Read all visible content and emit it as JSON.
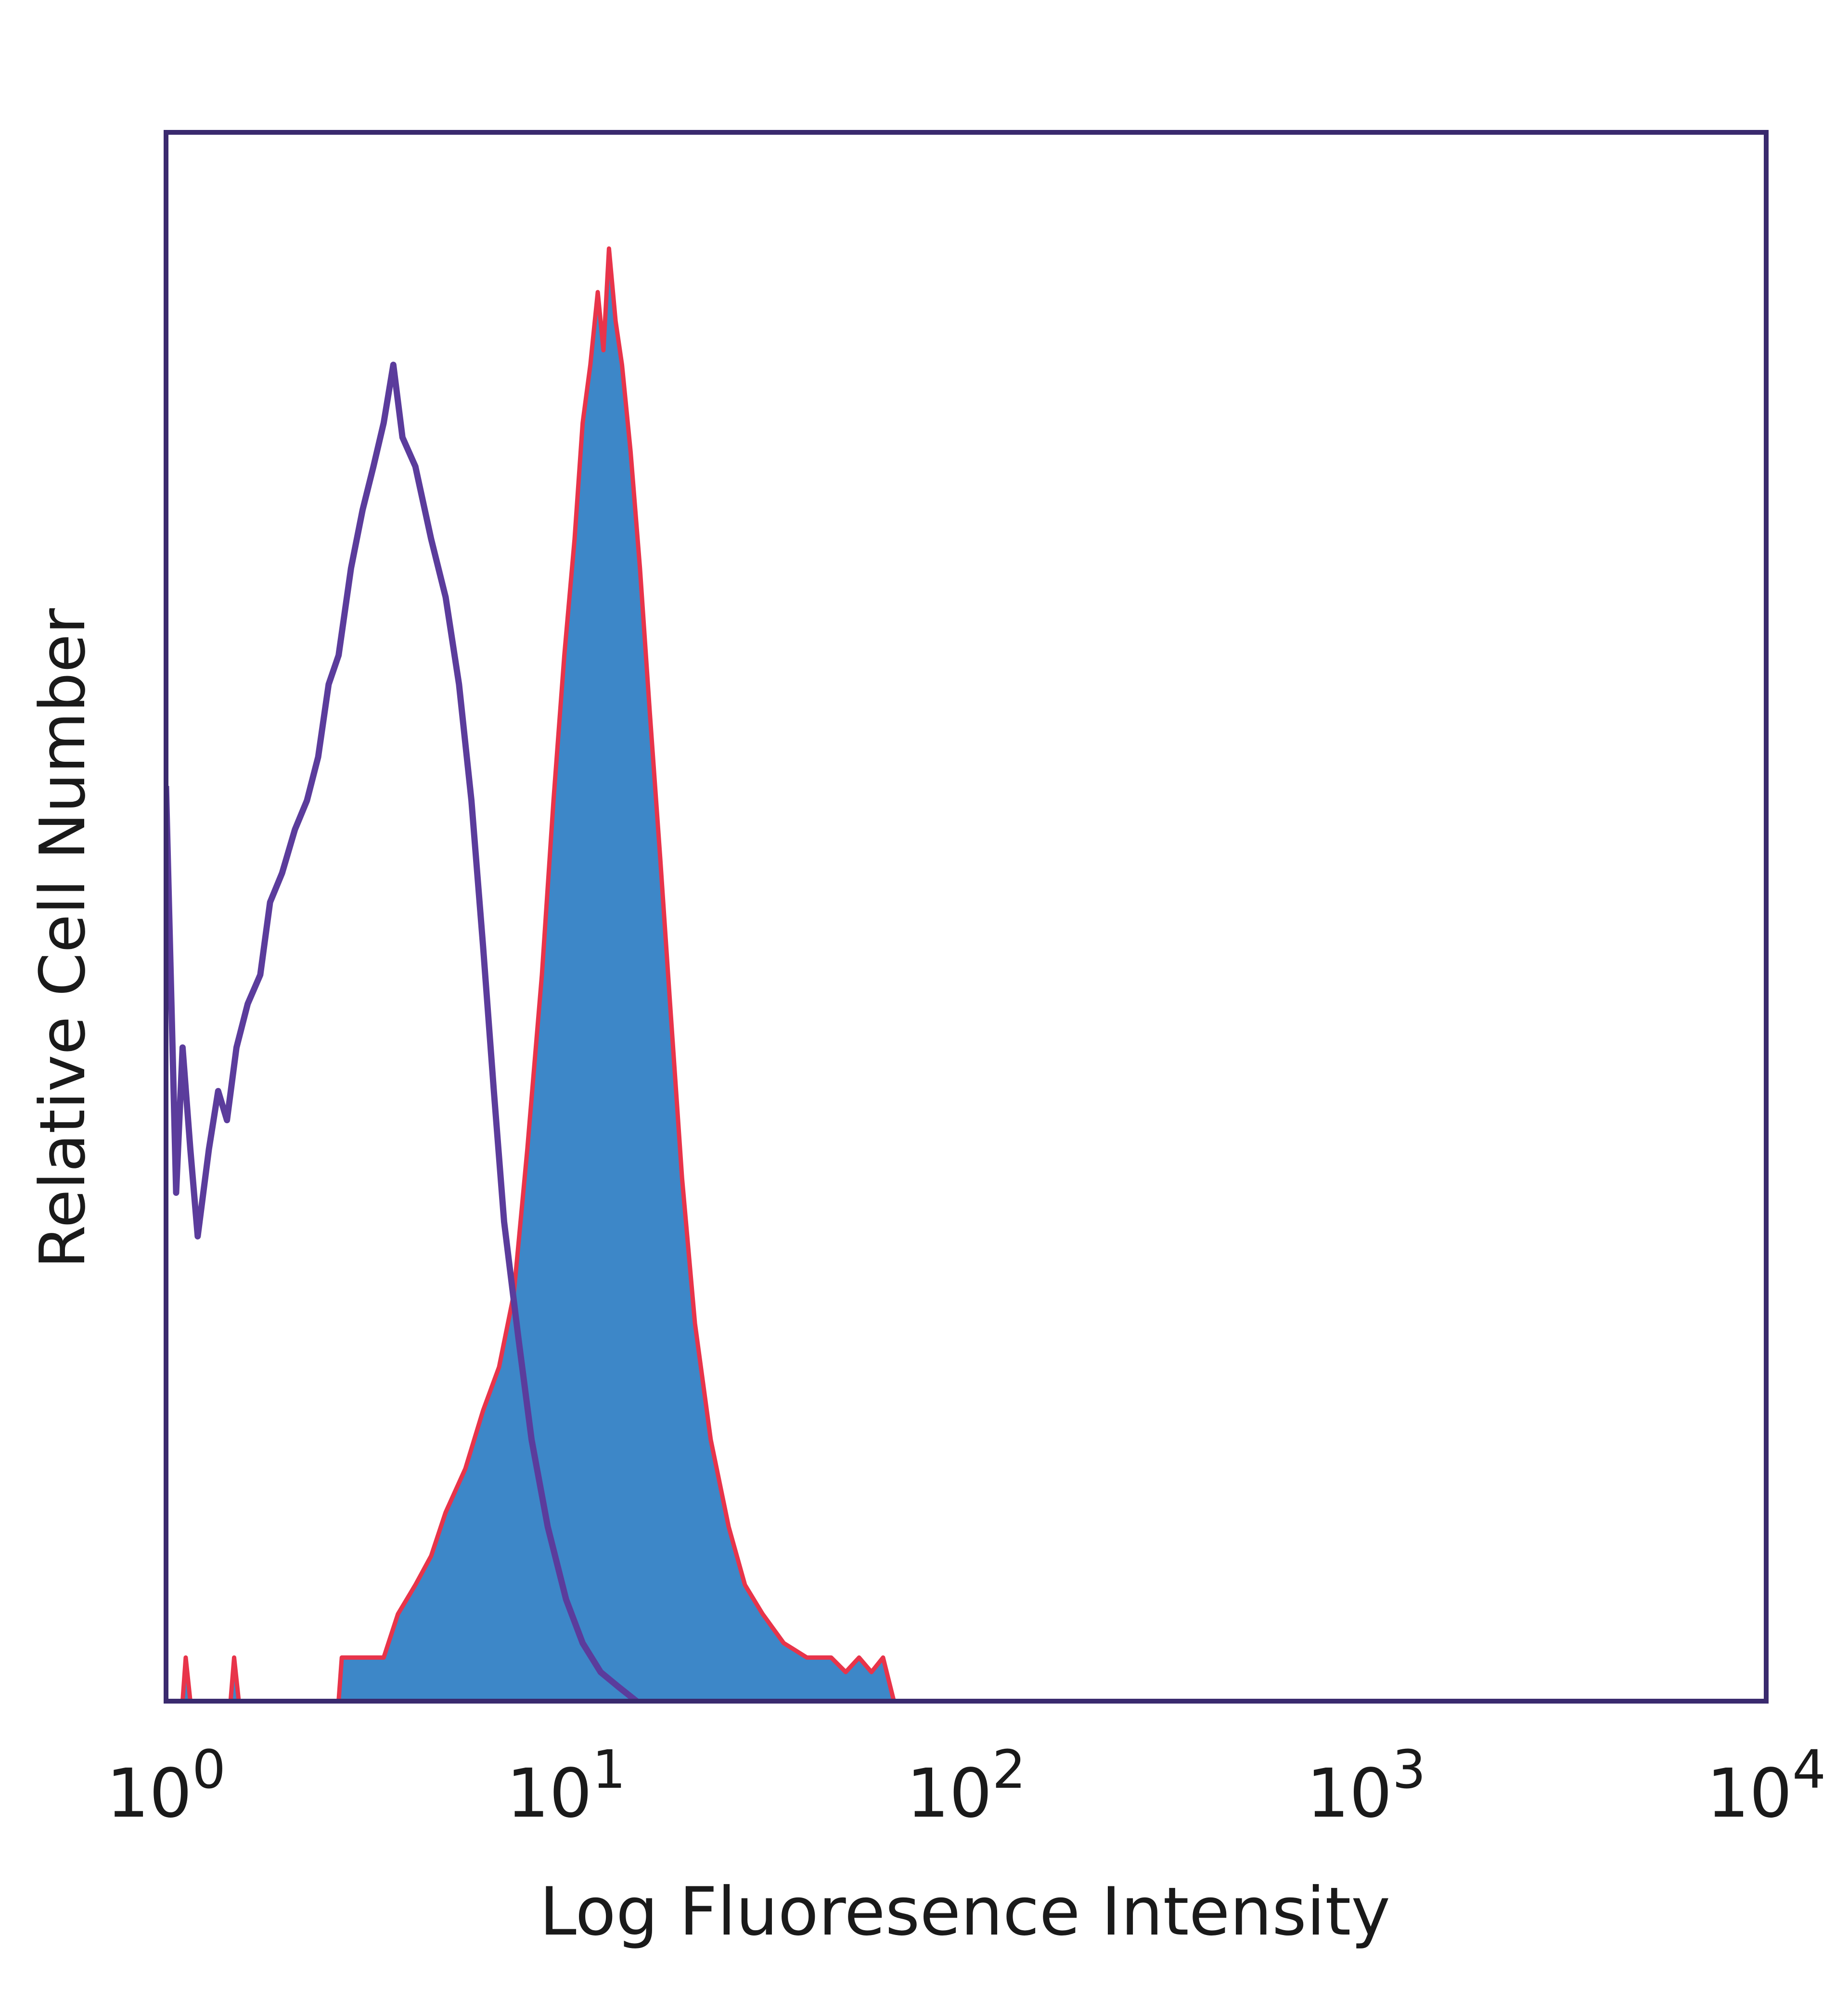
{
  "chart_data": {
    "type": "area",
    "xlabel": "Log Fluoresence Intensity",
    "ylabel": "Relative Cell Number",
    "x_scale": "log",
    "xlim": [
      1,
      10000
    ],
    "ylim": [
      0,
      1.08
    ],
    "grid": false,
    "x_ticks": [
      {
        "value": 1,
        "base": "10",
        "exp": "0"
      },
      {
        "value": 10,
        "base": "10",
        "exp": "1"
      },
      {
        "value": 100,
        "base": "10",
        "exp": "2"
      },
      {
        "value": 1000,
        "base": "10",
        "exp": "3"
      },
      {
        "value": 10000,
        "base": "10",
        "exp": "4"
      }
    ],
    "series": [
      {
        "style": "filled",
        "color": "#3d87c8",
        "edge_color": "#e8344a",
        "points": [
          [
            1.0,
            0.0
          ],
          [
            1.1,
            0.0
          ],
          [
            1.12,
            0.03
          ],
          [
            1.15,
            0.0
          ],
          [
            1.45,
            0.0
          ],
          [
            1.48,
            0.03
          ],
          [
            1.52,
            0.0
          ],
          [
            2.7,
            0.0
          ],
          [
            2.75,
            0.03
          ],
          [
            3.2,
            0.03
          ],
          [
            3.5,
            0.03
          ],
          [
            3.8,
            0.06
          ],
          [
            4.2,
            0.08
          ],
          [
            4.6,
            0.1
          ],
          [
            5.0,
            0.13
          ],
          [
            5.6,
            0.16
          ],
          [
            6.2,
            0.2
          ],
          [
            6.8,
            0.23
          ],
          [
            7.4,
            0.28
          ],
          [
            8.0,
            0.38
          ],
          [
            8.7,
            0.5
          ],
          [
            9.3,
            0.62
          ],
          [
            9.9,
            0.72
          ],
          [
            10.5,
            0.8
          ],
          [
            11.0,
            0.88
          ],
          [
            11.5,
            0.92
          ],
          [
            12.0,
            0.97
          ],
          [
            12.4,
            0.93
          ],
          [
            12.8,
            1.0
          ],
          [
            13.3,
            0.95
          ],
          [
            13.8,
            0.92
          ],
          [
            14.5,
            0.86
          ],
          [
            15.3,
            0.78
          ],
          [
            16.2,
            0.68
          ],
          [
            17.2,
            0.58
          ],
          [
            18.2,
            0.48
          ],
          [
            19.5,
            0.36
          ],
          [
            21.0,
            0.26
          ],
          [
            23.0,
            0.18
          ],
          [
            25.5,
            0.12
          ],
          [
            28.0,
            0.08
          ],
          [
            31.0,
            0.06
          ],
          [
            35.0,
            0.04
          ],
          [
            40.0,
            0.03
          ],
          [
            46.0,
            0.03
          ],
          [
            50.0,
            0.02
          ],
          [
            54.0,
            0.03
          ],
          [
            58.0,
            0.02
          ],
          [
            62.0,
            0.03
          ],
          [
            66.0,
            0.0
          ]
        ]
      },
      {
        "style": "line",
        "color": "#5b3c9c",
        "points": [
          [
            1.0,
            0.63
          ],
          [
            1.06,
            0.35
          ],
          [
            1.1,
            0.45
          ],
          [
            1.15,
            0.38
          ],
          [
            1.2,
            0.32
          ],
          [
            1.28,
            0.38
          ],
          [
            1.35,
            0.42
          ],
          [
            1.42,
            0.4
          ],
          [
            1.5,
            0.45
          ],
          [
            1.6,
            0.48
          ],
          [
            1.72,
            0.5
          ],
          [
            1.82,
            0.55
          ],
          [
            1.95,
            0.57
          ],
          [
            2.1,
            0.6
          ],
          [
            2.25,
            0.62
          ],
          [
            2.4,
            0.65
          ],
          [
            2.55,
            0.7
          ],
          [
            2.7,
            0.72
          ],
          [
            2.9,
            0.78
          ],
          [
            3.1,
            0.82
          ],
          [
            3.3,
            0.85
          ],
          [
            3.5,
            0.88
          ],
          [
            3.7,
            0.92
          ],
          [
            3.9,
            0.87
          ],
          [
            4.2,
            0.85
          ],
          [
            4.6,
            0.8
          ],
          [
            5.0,
            0.76
          ],
          [
            5.4,
            0.7
          ],
          [
            5.8,
            0.62
          ],
          [
            6.2,
            0.52
          ],
          [
            6.6,
            0.42
          ],
          [
            7.0,
            0.33
          ],
          [
            7.6,
            0.25
          ],
          [
            8.2,
            0.18
          ],
          [
            9.0,
            0.12
          ],
          [
            10.0,
            0.07
          ],
          [
            11.0,
            0.04
          ],
          [
            12.2,
            0.02
          ],
          [
            13.5,
            0.01
          ],
          [
            15.0,
            0.0
          ]
        ]
      }
    ]
  }
}
